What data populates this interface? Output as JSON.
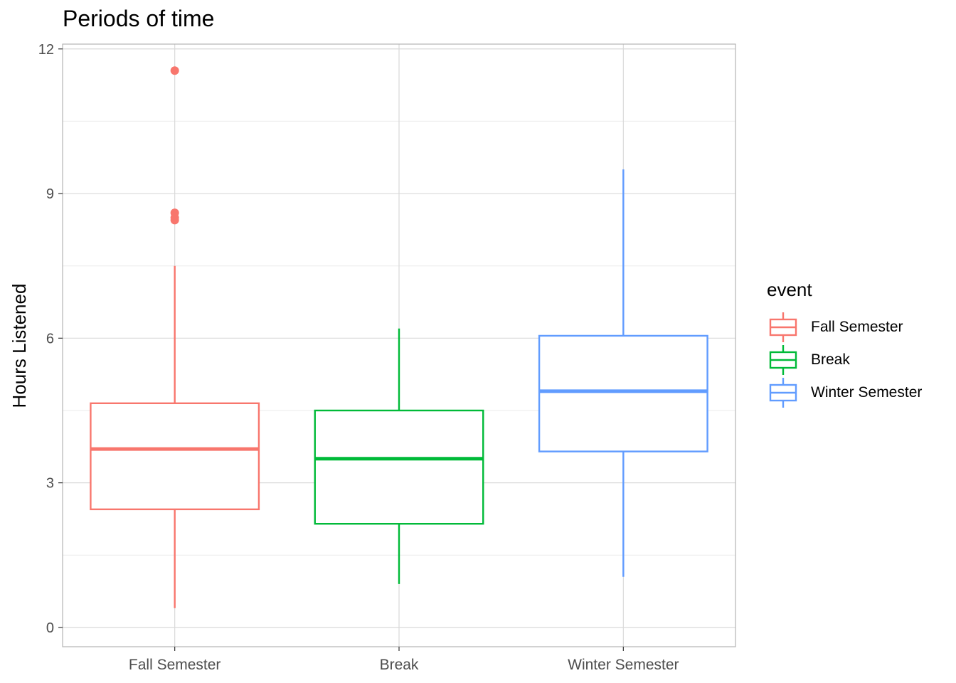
{
  "chart_data": {
    "type": "boxplot",
    "title": "Periods of time",
    "xlabel": "",
    "ylabel": "Hours Listened",
    "ylim": [
      -0.4,
      12.1
    ],
    "y_ticks": [
      0,
      3,
      6,
      9,
      12
    ],
    "y_tick_labels": [
      "0",
      "3",
      "6",
      "9",
      "12"
    ],
    "categories": [
      "Fall Semester",
      "Break",
      "Winter Semester"
    ],
    "grid": true,
    "legend": {
      "title": "event",
      "placement": "right",
      "entries": [
        "Fall Semester",
        "Break",
        "Winter Semester"
      ]
    },
    "series": [
      {
        "name": "Fall Semester",
        "color": "#F8766D",
        "whisker_low": 0.4,
        "q1": 2.45,
        "median": 3.7,
        "q3": 4.65,
        "whisker_high": 7.5,
        "outliers": [
          11.55,
          8.6,
          8.5,
          8.45
        ]
      },
      {
        "name": "Break",
        "color": "#00BA38",
        "whisker_low": 0.9,
        "q1": 2.15,
        "median": 3.5,
        "q3": 4.5,
        "whisker_high": 6.2,
        "outliers": []
      },
      {
        "name": "Winter Semester",
        "color": "#619CFF",
        "whisker_low": 1.05,
        "q1": 3.65,
        "median": 4.9,
        "q3": 6.05,
        "whisker_high": 9.5,
        "outliers": []
      }
    ]
  }
}
